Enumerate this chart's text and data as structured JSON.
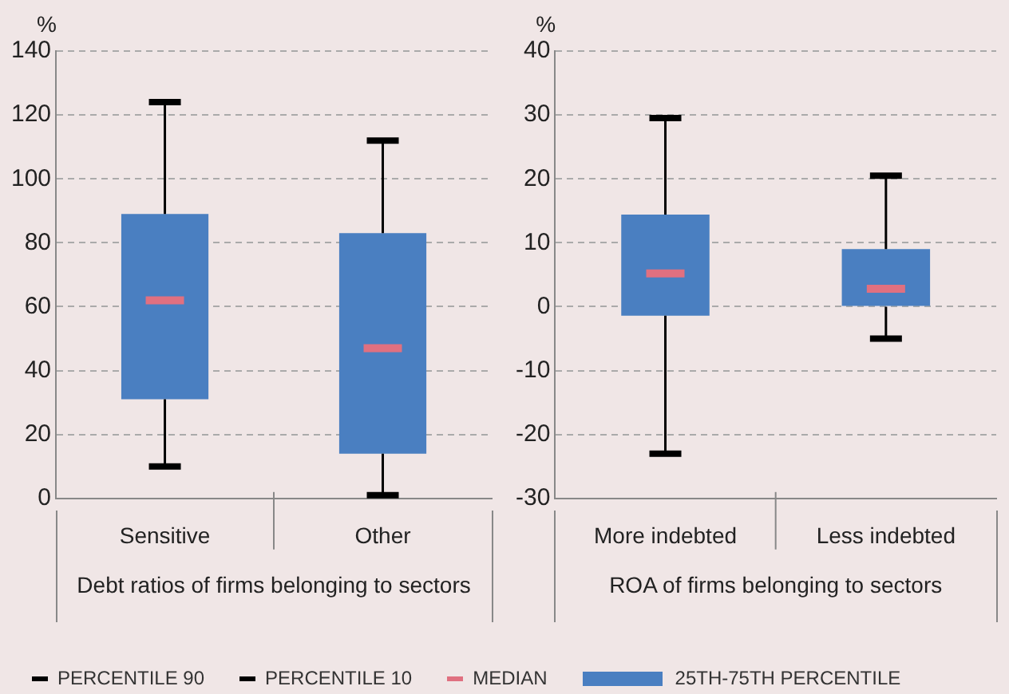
{
  "chart_data": [
    {
      "type": "box",
      "ylabel": "%",
      "xlabel": "Debt ratios of firms belonging to sectors",
      "categories": [
        "Sensitive",
        "Other"
      ],
      "ylim": [
        0,
        140
      ],
      "yticks": [
        0,
        20,
        40,
        60,
        80,
        100,
        120,
        140
      ],
      "grid": "y",
      "legend": "bottom",
      "series": [
        {
          "name": "25TH-75TH PERCENTILE",
          "color": "#4a7fc1",
          "boxes": [
            {
              "low": 10,
              "q1": 31,
              "median": 62,
              "q3": 89,
              "high": 124
            },
            {
              "low": 1,
              "q1": 14,
              "median": 47,
              "q3": 83,
              "high": 112
            }
          ]
        }
      ],
      "annotations": [
        "PERCENTILE 90",
        "PERCENTILE 10",
        "MEDIAN"
      ]
    },
    {
      "type": "box",
      "ylabel": "%",
      "xlabel": "ROA of firms belonging to sectors",
      "categories": [
        "More indebted",
        "Less indebted"
      ],
      "ylim": [
        -30,
        40
      ],
      "yticks": [
        -30,
        -20,
        -10,
        0,
        10,
        20,
        30,
        40
      ],
      "grid": "y",
      "series": [
        {
          "color": "#4a7fc1",
          "boxes": [
            {
              "low": -23,
              "q1": -1.4,
              "median": 5.2,
              "q3": 14.4,
              "high": 29.5
            },
            {
              "low": -5,
              "q1": 0,
              "median": 2.8,
              "q3": 9,
              "high": 20.5
            }
          ]
        }
      ]
    }
  ]
}
